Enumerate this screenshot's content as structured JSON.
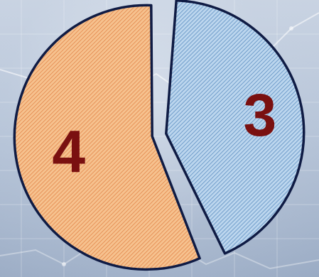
{
  "chart_data": {
    "type": "pie",
    "categories": [
      "3",
      "4"
    ],
    "values": [
      3,
      4
    ],
    "labels": [
      "3",
      "4"
    ],
    "title": "",
    "legend": "none",
    "colors": {
      "slice_3_fill": "#bcd6ee",
      "slice_3_hatch": "#5e8fc2",
      "slice_4_fill": "#f6c28f",
      "slice_4_hatch": "#e2854a",
      "outline": "#0f1b44",
      "label": "#7a1010"
    }
  }
}
